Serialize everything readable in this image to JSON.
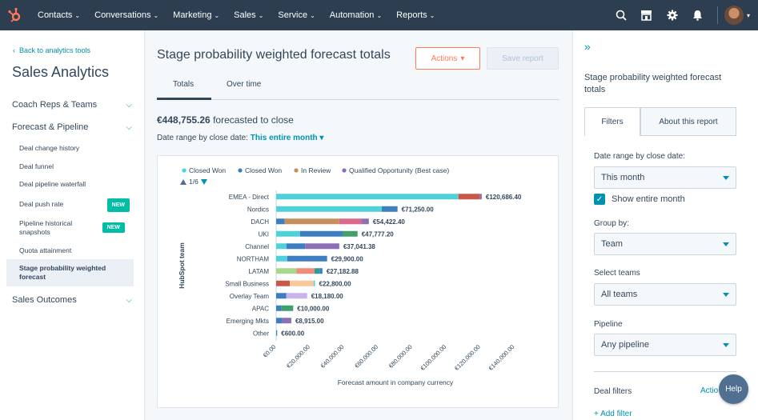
{
  "topnav": {
    "logo_icon": "hubspot-sprocket-icon",
    "items": [
      {
        "label": "Contacts"
      },
      {
        "label": "Conversations"
      },
      {
        "label": "Marketing"
      },
      {
        "label": "Sales"
      },
      {
        "label": "Service"
      },
      {
        "label": "Automation"
      },
      {
        "label": "Reports"
      }
    ],
    "right_icons": [
      "search-icon",
      "marketplace-icon",
      "settings-icon",
      "notifications-icon"
    ]
  },
  "sidebar": {
    "back_link": "Back to analytics tools",
    "title": "Sales Analytics",
    "sections": {
      "coach": "Coach Reps & Teams",
      "forecast": "Forecast & Pipeline",
      "outcomes": "Sales Outcomes"
    },
    "items": [
      {
        "label": "Deal change history",
        "badge": ""
      },
      {
        "label": "Deal funnel",
        "badge": ""
      },
      {
        "label": "Deal pipeline waterfall",
        "badge": ""
      },
      {
        "label": "Deal push rate",
        "badge": "NEW"
      },
      {
        "label": "Pipeline historical snapshots",
        "badge": "NEW"
      },
      {
        "label": "Quota attainment",
        "badge": ""
      },
      {
        "label": "Stage probability weighted forecast",
        "badge": ""
      }
    ]
  },
  "main": {
    "title": "Stage probability weighted forecast totals",
    "actions_label": "Actions",
    "save_label": "Save report",
    "tabs": [
      "Totals",
      "Over time"
    ],
    "summary_amount": "€448,755.26",
    "summary_text": " forecasted to close",
    "daterange_label": "Date range by close date: ",
    "daterange_value": "This entire month"
  },
  "chart_data": {
    "type": "bar",
    "orientation": "horizontal",
    "stacked": true,
    "ylabel": "HubSpot team",
    "xlabel": "Forecast amount in company currency",
    "legend": [
      {
        "name": "Closed Won",
        "color": "#4fd1d9"
      },
      {
        "name": "Closed Won",
        "color": "#3d7fc1"
      },
      {
        "name": "In Review",
        "color": "#c48f5a"
      },
      {
        "name": "Qualified Opportunity (Best case)",
        "color": "#8c70b5"
      }
    ],
    "legend_page": "1/6",
    "xlim": [
      0,
      140000
    ],
    "xticks": [
      "€0.00",
      "€20,000.00",
      "€40,000.00",
      "€60,000.00",
      "€80,000.00",
      "€100,000.00",
      "€120,000.00",
      "€140,000.00"
    ],
    "categories": [
      "EMEA - Direct",
      "Nordics",
      "DACH",
      "UKI",
      "Channel",
      "NORTHAM",
      "LATAM",
      "Small Business",
      "Overlay Team",
      "APAC",
      "Emerging Mkts",
      "Other"
    ],
    "totals": [
      120686.4,
      71250.0,
      54422.4,
      47777.2,
      37041.38,
      29900.0,
      27182.88,
      22800.0,
      18180.0,
      10000.0,
      8915.0,
      600.0
    ],
    "total_labels": [
      "€120,686.40",
      "€71,250.00",
      "€54,422.40",
      "€47,777.20",
      "€37,041.38",
      "€29,900.00",
      "€27,182.88",
      "€22,800.00",
      "€18,180.00",
      "€10,000.00",
      "€8,915.00",
      "€600.00"
    ],
    "segments": [
      [
        {
          "v": 107000,
          "c": "#4fd1d9"
        },
        {
          "v": 12500,
          "c": "#c8584a"
        },
        {
          "v": 1186.4,
          "c": "#8c70b5"
        }
      ],
      [
        {
          "v": 62000,
          "c": "#4fd1d9"
        },
        {
          "v": 9250,
          "c": "#3d7fc1"
        }
      ],
      [
        {
          "v": 5000,
          "c": "#3d7fc1"
        },
        {
          "v": 32000,
          "c": "#c48f5a"
        },
        {
          "v": 13000,
          "c": "#d96a8a"
        },
        {
          "v": 4422.4,
          "c": "#8c70b5"
        }
      ],
      [
        {
          "v": 14000,
          "c": "#4fd1d9"
        },
        {
          "v": 25000,
          "c": "#3d7fc1"
        },
        {
          "v": 8777.2,
          "c": "#3fa06b"
        }
      ],
      [
        {
          "v": 6000,
          "c": "#4fd1d9"
        },
        {
          "v": 11000,
          "c": "#3d7fc1"
        },
        {
          "v": 20041.38,
          "c": "#8c70b5"
        }
      ],
      [
        {
          "v": 6500,
          "c": "#4fd1d9"
        },
        {
          "v": 23400,
          "c": "#3d7fc1"
        }
      ],
      [
        {
          "v": 12000,
          "c": "#a8d88a"
        },
        {
          "v": 10500,
          "c": "#f08c7a"
        },
        {
          "v": 3000,
          "c": "#2a9d8f"
        },
        {
          "v": 1682.88,
          "c": "#3d7fc1"
        }
      ],
      [
        {
          "v": 8000,
          "c": "#c8584a"
        },
        {
          "v": 14000,
          "c": "#f8c89a"
        },
        {
          "v": 800,
          "c": "#4fd1d9"
        }
      ],
      [
        {
          "v": 6000,
          "c": "#3d7fc1"
        },
        {
          "v": 12180,
          "c": "#c9b3e8"
        }
      ],
      [
        {
          "v": 3000,
          "c": "#3d7fc1"
        },
        {
          "v": 7000,
          "c": "#3fa06b"
        }
      ],
      [
        {
          "v": 3500,
          "c": "#3d7fc1"
        },
        {
          "v": 5415,
          "c": "#8c70b5"
        }
      ],
      [
        {
          "v": 600,
          "c": "#3d7fc1"
        }
      ]
    ]
  },
  "rpanel": {
    "title": "Stage probability weighted forecast totals",
    "tabs": {
      "filters": "Filters",
      "about": "About this report"
    },
    "daterange_label": "Date range by close date:",
    "daterange_value": "This month",
    "show_entire_month": "Show entire month",
    "groupby_label": "Group by:",
    "groupby_value": "Team",
    "teams_label": "Select teams",
    "teams_value": "All teams",
    "pipeline_label": "Pipeline",
    "pipeline_value": "Any pipeline",
    "deal_filters": "Deal filters",
    "actions_link": "Actio",
    "add_filter": "+ Add filter"
  },
  "help_label": "Help"
}
